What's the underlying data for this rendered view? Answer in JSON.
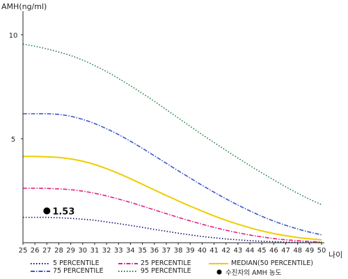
{
  "chart_data": {
    "type": "line",
    "title": "",
    "ylabel": "AMH(ng/ml)",
    "xlabel": "나이",
    "x": [
      25,
      26,
      27,
      28,
      29,
      30,
      31,
      32,
      33,
      34,
      35,
      36,
      37,
      38,
      39,
      40,
      41,
      42,
      43,
      44,
      45,
      46,
      47,
      48,
      49,
      50
    ],
    "xlim": [
      25,
      50
    ],
    "ylim": [
      0,
      11
    ],
    "yticks": [
      5,
      10
    ],
    "grid": false,
    "legend_position": "bottom",
    "series": [
      {
        "name": "5 PERCENTILE",
        "color": "#0a0a6e",
        "style": "dotted",
        "values": [
          1.22,
          1.22,
          1.22,
          1.2,
          1.17,
          1.13,
          1.08,
          1.0,
          0.92,
          0.83,
          0.74,
          0.64,
          0.55,
          0.46,
          0.38,
          0.3,
          0.24,
          0.18,
          0.14,
          0.1,
          0.07,
          0.05,
          0.03,
          0.02,
          0.01,
          0.01
        ]
      },
      {
        "name": "25 PERCENTILE",
        "color": "#e0227e",
        "style": "dashdot",
        "values": [
          2.62,
          2.62,
          2.61,
          2.59,
          2.55,
          2.48,
          2.38,
          2.25,
          2.1,
          1.94,
          1.76,
          1.58,
          1.4,
          1.22,
          1.05,
          0.89,
          0.74,
          0.6,
          0.48,
          0.37,
          0.28,
          0.2,
          0.14,
          0.1,
          0.06,
          0.04
        ]
      },
      {
        "name": "MEDIAN(50 PERCENTILE)",
        "color": "#f0cc00",
        "style": "solid",
        "values": [
          4.15,
          4.15,
          4.13,
          4.1,
          4.03,
          3.92,
          3.76,
          3.56,
          3.33,
          3.08,
          2.81,
          2.54,
          2.27,
          2.01,
          1.76,
          1.52,
          1.29,
          1.08,
          0.89,
          0.72,
          0.57,
          0.44,
          0.34,
          0.25,
          0.19,
          0.14
        ]
      },
      {
        "name": "75 PERCENTILE",
        "color": "#3c57c8",
        "style": "dashdot",
        "values": [
          6.2,
          6.2,
          6.2,
          6.17,
          6.08,
          5.93,
          5.73,
          5.48,
          5.2,
          4.88,
          4.54,
          4.18,
          3.82,
          3.46,
          3.11,
          2.76,
          2.43,
          2.11,
          1.81,
          1.53,
          1.27,
          1.04,
          0.84,
          0.66,
          0.51,
          0.38
        ]
      },
      {
        "name": "95 PERCENTILE",
        "color": "#1f7a3d",
        "style": "dotted",
        "values": [
          9.55,
          9.45,
          9.32,
          9.17,
          9.0,
          8.78,
          8.52,
          8.23,
          7.9,
          7.55,
          7.18,
          6.8,
          6.4,
          6.0,
          5.6,
          5.2,
          4.82,
          4.44,
          4.07,
          3.71,
          3.36,
          3.02,
          2.69,
          2.38,
          2.09,
          1.83
        ]
      }
    ],
    "points": [
      {
        "name": "수진자의 AMH 농도",
        "x": 27,
        "y": 1.53,
        "label": "1.53",
        "color": "#000000"
      }
    ]
  }
}
